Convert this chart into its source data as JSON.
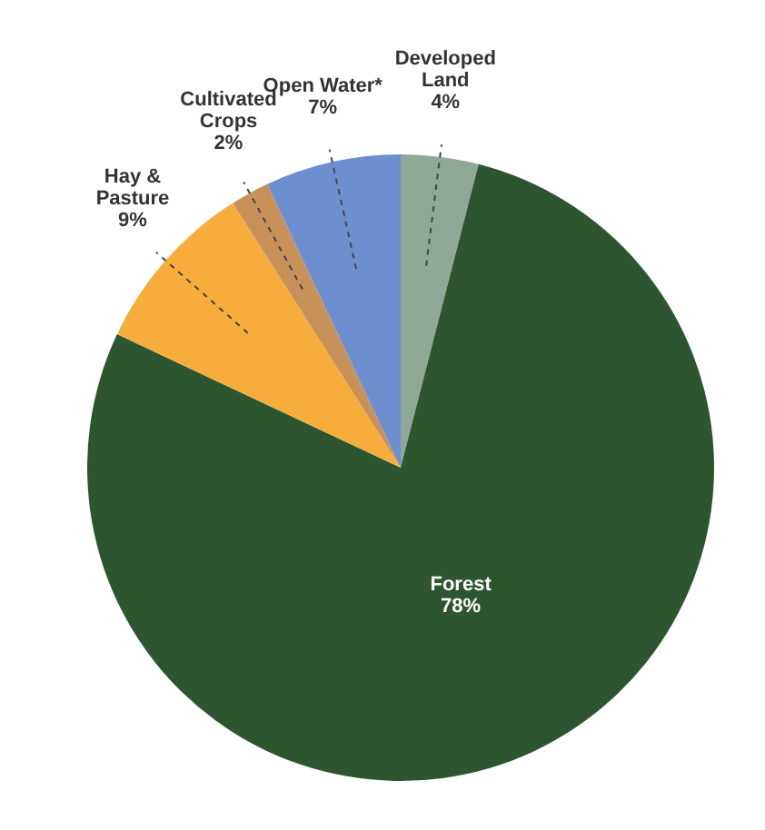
{
  "chart_data": {
    "type": "pie",
    "categories": [
      "Developed Land",
      "Forest",
      "Hay & Pasture",
      "Cultivated Crops",
      "Open Water*"
    ],
    "values": [
      4,
      78,
      9,
      2,
      7
    ],
    "colors": [
      "#8fa898",
      "#2c5530",
      "#f6ad3c",
      "#c9915a",
      "#6d8fcf"
    ],
    "value_labels": [
      "4%",
      "78%",
      "9%",
      "2%",
      "7%"
    ],
    "legend": false
  }
}
